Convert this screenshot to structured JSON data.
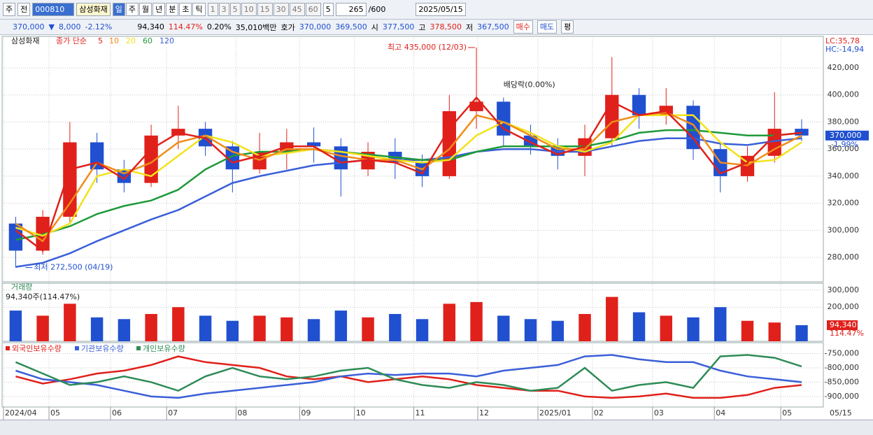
{
  "toolbar": {
    "market": "주",
    "prev": "전",
    "code": "000810",
    "name": "삼성화재",
    "periods": [
      "일",
      "주",
      "월",
      "년",
      "분",
      "초",
      "틱"
    ],
    "intervals": [
      "1",
      "3",
      "5",
      "10",
      "15",
      "30",
      "45",
      "60"
    ],
    "interval": "5",
    "count": "265",
    "max": "/600",
    "date": "2025/05/15"
  },
  "quote_bar": {
    "price": "370,000",
    "arrow": "▼",
    "change": "8,000",
    "change_pct": "-2.12%",
    "volume": "94,340",
    "volume_ratio": "114.47%",
    "turnover": "0.20%",
    "amount": "35,010백만",
    "ask_label": "호가",
    "ask": "370,000",
    "bid": "369,500",
    "open_label": "시",
    "open": "377,500",
    "high_label": "고",
    "high": "378,500",
    "low_label": "저",
    "low": "367,500",
    "buy": "매수",
    "sell": "매도",
    "avg": "평"
  },
  "chart_data": [
    {
      "type": "candlestick",
      "title": "삼성화재",
      "indicator": "종가 단순",
      "up_color": "#e0201a",
      "down_color": "#2050d0",
      "open": [
        305000,
        285000,
        310000,
        365000,
        345000,
        335000,
        370000,
        375000,
        362000,
        345000,
        358000,
        365000,
        362000,
        345000,
        358000,
        350000,
        340000,
        388000,
        395000,
        370000,
        362000,
        355000,
        368000,
        400000,
        385000,
        392000,
        360000,
        340000,
        355000,
        375000
      ],
      "high": [
        310000,
        315000,
        380000,
        372000,
        352000,
        378000,
        392000,
        380000,
        366000,
        372000,
        375000,
        376000,
        368000,
        365000,
        368000,
        356000,
        400000,
        435000,
        398000,
        378000,
        368000,
        378000,
        428000,
        405000,
        405000,
        396000,
        365000,
        362000,
        402000,
        382000
      ],
      "low": [
        272500,
        282000,
        305000,
        335000,
        328000,
        332000,
        360000,
        355000,
        328000,
        342000,
        345000,
        350000,
        325000,
        340000,
        338000,
        332000,
        338000,
        375000,
        362000,
        356000,
        345000,
        340000,
        362000,
        375000,
        378000,
        352000,
        328000,
        336000,
        350000,
        366000
      ],
      "close": [
        285000,
        310000,
        365000,
        345000,
        335000,
        370000,
        375000,
        362000,
        345000,
        358000,
        365000,
        362000,
        345000,
        358000,
        350000,
        340000,
        388000,
        395000,
        370000,
        362000,
        355000,
        368000,
        400000,
        385000,
        392000,
        360000,
        340000,
        355000,
        375000,
        370000
      ],
      "series": [
        {
          "name": "5",
          "color": "#e0201a",
          "values": [
            300000,
            285000,
            345000,
            350000,
            338000,
            360000,
            372000,
            368000,
            350000,
            355000,
            362000,
            362000,
            350000,
            352000,
            350000,
            342000,
            375000,
            398000,
            375000,
            365000,
            356000,
            362000,
            395000,
            385000,
            388000,
            368000,
            342000,
            350000,
            370000,
            372000
          ]
        },
        {
          "name": "10",
          "color": "#f08c1a",
          "values": [
            305000,
            292000,
            320000,
            350000,
            342000,
            350000,
            365000,
            370000,
            358000,
            352000,
            360000,
            360000,
            355000,
            352000,
            352000,
            345000,
            360000,
            385000,
            380000,
            370000,
            360000,
            360000,
            380000,
            385000,
            387000,
            378000,
            350000,
            348000,
            360000,
            370000
          ]
        },
        {
          "name": "20",
          "color": "#f2e21a",
          "values": [
            302000,
            296000,
            305000,
            340000,
            345000,
            340000,
            355000,
            370000,
            365000,
            355000,
            357000,
            360000,
            358000,
            355000,
            352000,
            350000,
            352000,
            370000,
            380000,
            372000,
            362000,
            358000,
            365000,
            385000,
            385000,
            385000,
            365000,
            350000,
            352000,
            365000
          ]
        },
        {
          "name": "60",
          "color": "#1f9a3a",
          "values": [
            293000,
            297000,
            303000,
            312000,
            318000,
            322000,
            330000,
            345000,
            355000,
            358000,
            358000,
            360000,
            358000,
            356000,
            354000,
            352000,
            352000,
            358000,
            362000,
            362000,
            362000,
            362000,
            366000,
            372000,
            374000,
            374000,
            372000,
            370000,
            370000,
            372000
          ]
        },
        {
          "name": "120",
          "color": "#3a5fd8",
          "values": [
            273000,
            276000,
            283000,
            292000,
            300000,
            308000,
            315000,
            325000,
            335000,
            340000,
            344000,
            348000,
            350000,
            352000,
            352000,
            352000,
            354000,
            358000,
            360000,
            360000,
            358000,
            358000,
            362000,
            366000,
            368000,
            368000,
            364000,
            363000,
            366000,
            368000
          ]
        }
      ],
      "annotations": {
        "high": "최고 435,000 (12/03)",
        "low": "최저 272,500 (04/19)",
        "dividend": "배당락(0.00%)"
      },
      "lc": "LC:35,78",
      "hc": "HC:-14,94",
      "last_label": {
        "value": 370000,
        "label": "370,000"
      },
      "last_change": "-1.99%",
      "xlim": [
        -0.5,
        29.8
      ],
      "ylim": [
        263500,
        441700
      ],
      "yticks": [
        {
          "value": 280000,
          "label": "280,000"
        },
        {
          "value": 300000,
          "label": "300,000"
        },
        {
          "value": 320000,
          "label": "320,000"
        },
        {
          "value": 340000,
          "label": "340,000"
        },
        {
          "value": 360000,
          "label": "360,000"
        },
        {
          "value": 380000,
          "label": "380,000"
        },
        {
          "value": 400000,
          "label": "400,000"
        },
        {
          "value": 420000,
          "label": "420,000"
        }
      ],
      "grid": true
    },
    {
      "type": "bar",
      "title": "거래량",
      "subtitle": "94,340주(114.47%)",
      "values": [
        180000,
        150000,
        220000,
        140000,
        130000,
        160000,
        200000,
        150000,
        120000,
        150000,
        140000,
        130000,
        180000,
        140000,
        160000,
        130000,
        220000,
        230000,
        150000,
        130000,
        120000,
        160000,
        260000,
        170000,
        150000,
        140000,
        200000,
        120000,
        110000,
        94340
      ],
      "last_label": "94,340",
      "last_ratio": "114.47%",
      "xlim": [
        -0.5,
        29.8
      ],
      "ylim": [
        0,
        332000
      ],
      "yticks": [
        {
          "value": 200000,
          "label": "200,000"
        },
        {
          "value": 300000,
          "label": "300,000"
        }
      ],
      "grid": true
    },
    {
      "type": "line",
      "series": [
        {
          "name": "외국인보유수량",
          "color": "#e0201a",
          "values": [
            -830000,
            -855000,
            -840000,
            -820000,
            -810000,
            -790000,
            -760000,
            -780000,
            -790000,
            -800000,
            -830000,
            -840000,
            -830000,
            -850000,
            -840000,
            -830000,
            -840000,
            -860000,
            -870000,
            -880000,
            -880000,
            -900000,
            -905000,
            -900000,
            -890000,
            -905000,
            -905000,
            -895000,
            -870000,
            -860000
          ]
        },
        {
          "name": "기관보유수량",
          "color": "#3a5fd8",
          "values": [
            -810000,
            -840000,
            -850000,
            -860000,
            -880000,
            -900000,
            -905000,
            -890000,
            -880000,
            -870000,
            -860000,
            -850000,
            -830000,
            -820000,
            -825000,
            -820000,
            -820000,
            -830000,
            -810000,
            -800000,
            -790000,
            -760000,
            -755000,
            -770000,
            -780000,
            -780000,
            -810000,
            -830000,
            -840000,
            -850000
          ]
        },
        {
          "name": "개인보유수량",
          "color": "#2e8b57",
          "values": [
            -780000,
            -820000,
            -860000,
            -850000,
            -830000,
            -850000,
            -880000,
            -830000,
            -800000,
            -830000,
            -840000,
            -830000,
            -810000,
            -800000,
            -840000,
            -860000,
            -870000,
            -850000,
            -860000,
            -880000,
            -870000,
            -800000,
            -880000,
            -860000,
            -850000,
            -870000,
            -760000,
            -755000,
            -765000,
            -795000
          ]
        }
      ],
      "xlim": [
        -0.5,
        29.8
      ],
      "ylim": [
        -937000,
        -717000
      ],
      "yticks": [
        {
          "value": -900000,
          "label": "-900,000"
        },
        {
          "value": -850000,
          "label": "-850,000"
        },
        {
          "value": -800000,
          "label": "-800,000"
        },
        {
          "value": -750000,
          "label": "-750,000"
        }
      ],
      "xticks": [
        {
          "value": -0.45,
          "label": "2024/04"
        },
        {
          "value": 1.23,
          "label": "05"
        },
        {
          "value": 3.5,
          "label": "06"
        },
        {
          "value": 5.57,
          "label": "07"
        },
        {
          "value": 8.13,
          "label": "08"
        },
        {
          "value": 10.48,
          "label": "09"
        },
        {
          "value": 12.5,
          "label": "10"
        },
        {
          "value": 14.69,
          "label": "11"
        },
        {
          "value": 17.05,
          "label": "12"
        },
        {
          "value": 19.27,
          "label": "2025/01"
        },
        {
          "value": 21.28,
          "label": "02"
        },
        {
          "value": 23.5,
          "label": "03"
        },
        {
          "value": 25.78,
          "label": "04"
        },
        {
          "value": 28.23,
          "label": "05"
        }
      ],
      "x_end_label": "05/15",
      "grid": true
    }
  ]
}
